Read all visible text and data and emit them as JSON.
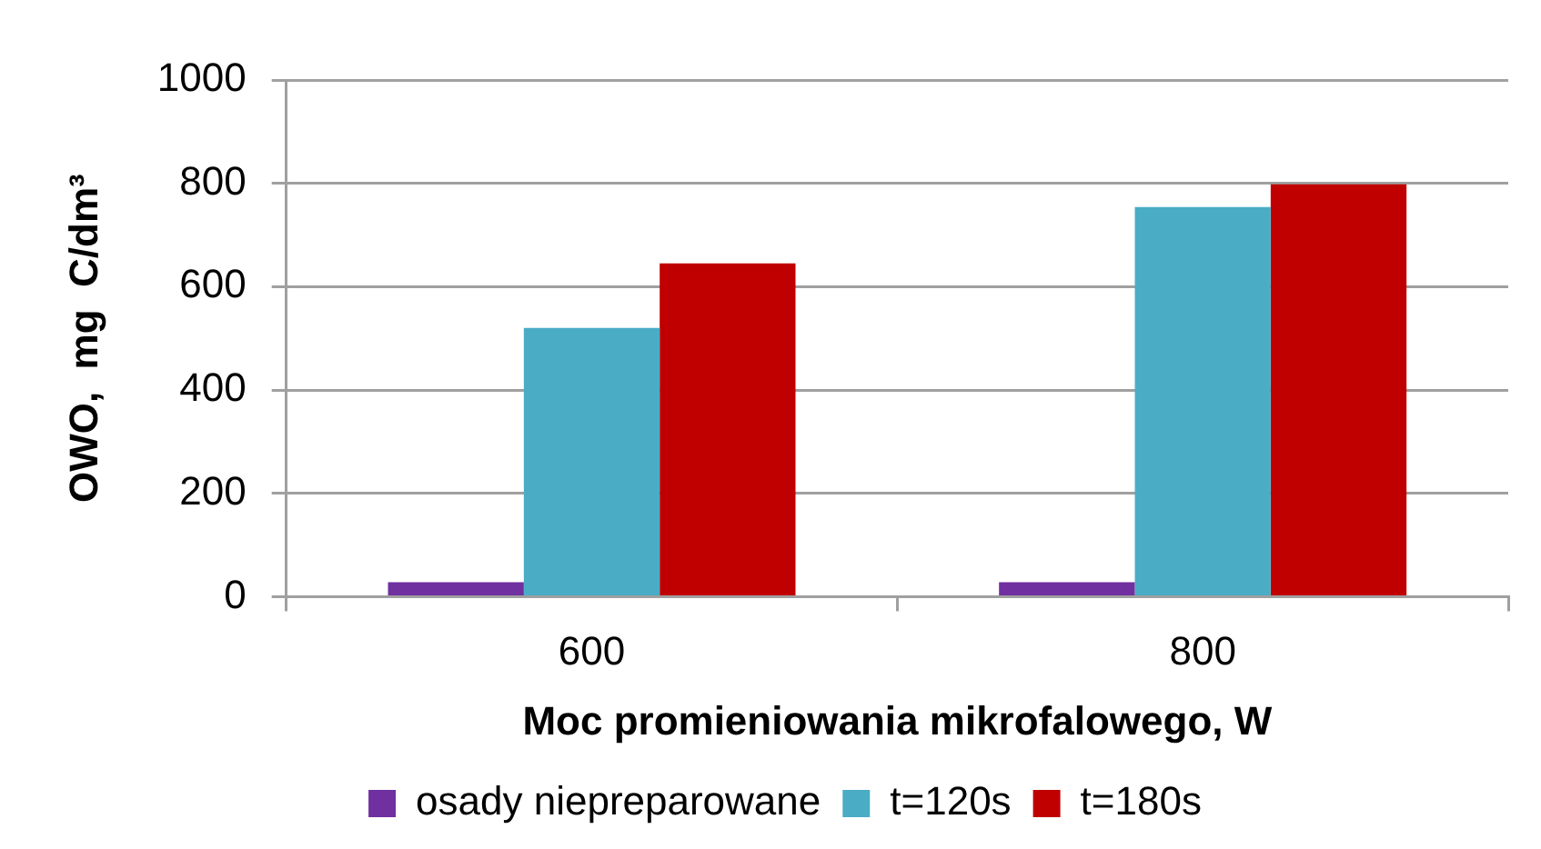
{
  "chart_data": {
    "type": "bar",
    "xlabel": "Moc promieniowania mikrofalowego, W",
    "ylabel": "OWO,  mg  C/dm³",
    "categories": [
      "600",
      "800"
    ],
    "series": [
      {
        "name": "osady niepreparowane",
        "color": "#7030a0",
        "values": [
          28,
          28
        ]
      },
      {
        "name": "t=120s",
        "color": "#4bacc6",
        "values": [
          520,
          754
        ]
      },
      {
        "name": "t=180s",
        "color": "#c00000",
        "values": [
          645,
          798
        ]
      }
    ],
    "ylim": [
      0,
      1000
    ],
    "yticks": [
      0,
      200,
      400,
      600,
      800,
      1000
    ],
    "grid": "y",
    "legend": "bottom"
  }
}
